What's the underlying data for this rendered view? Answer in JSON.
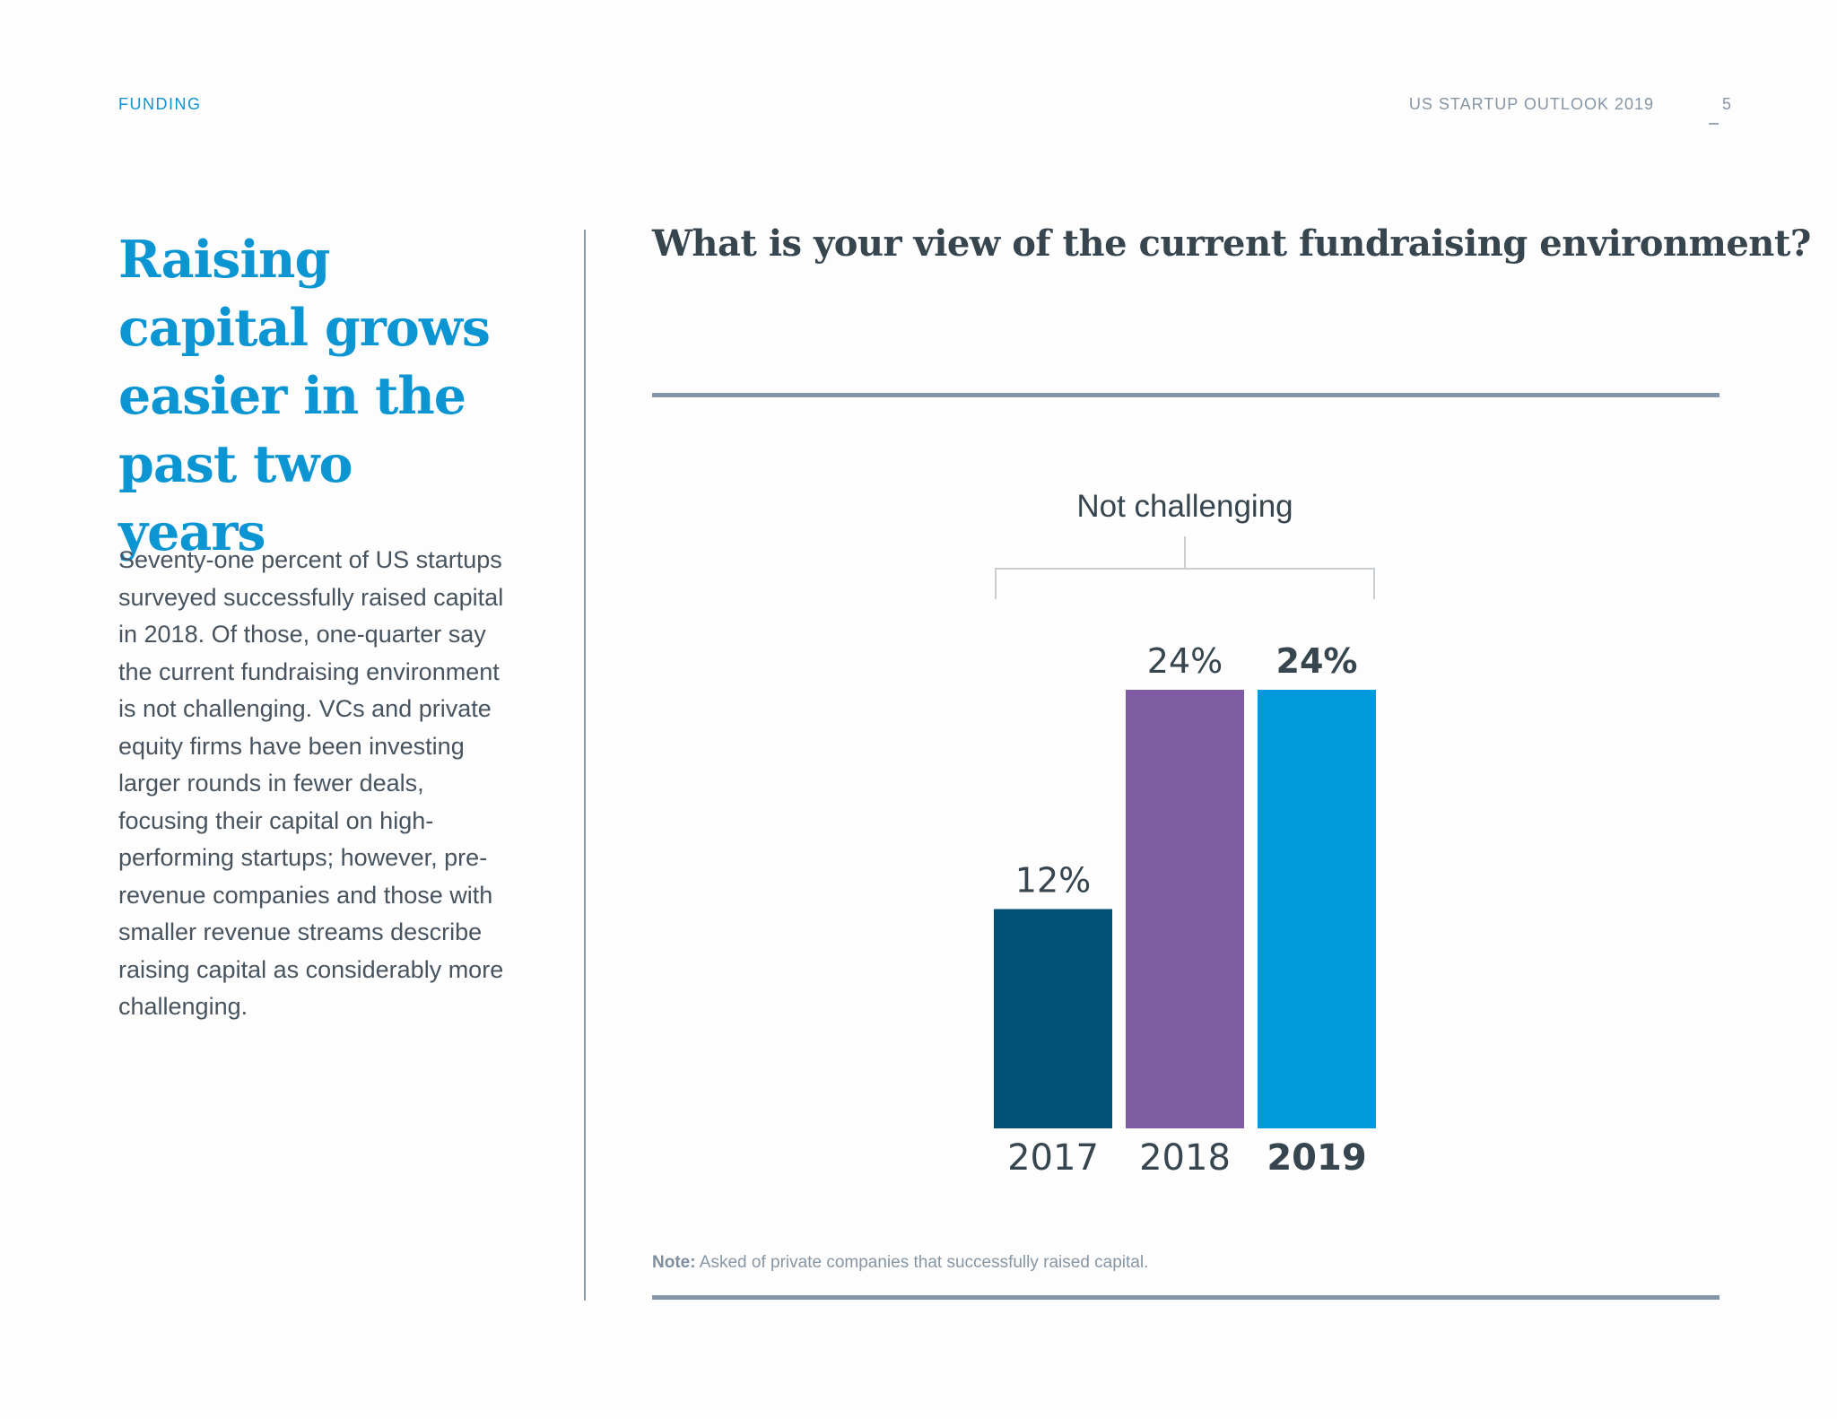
{
  "header": {
    "section": "FUNDING",
    "report": "US STARTUP OUTLOOK 2019",
    "page_number": "5"
  },
  "headline": "Raising capital grows easier in the past two years",
  "body": "Seventy-one percent of US startups surveyed successfully raised capital in 2018. Of those, one-quarter say the current fundraising environment is not challenging. VCs and private equity firms have been investing larger rounds in fewer deals, focusing their capital on high-performing startups; however, pre-revenue companies and those with smaller revenue streams describe raising capital as considerably more challenging.",
  "note": {
    "label": "Note:",
    "text": "Asked of private companies that successfully raised capital."
  },
  "chart_data": {
    "type": "bar",
    "title": "What is your view of the current fundraising environment?",
    "group_label": "Not challenging",
    "categories": [
      "2017",
      "2018",
      "2019"
    ],
    "values": [
      12,
      24,
      24
    ],
    "value_labels": [
      "12%",
      "24%",
      "24%"
    ],
    "colors": [
      "#005275",
      "#7f5ca1",
      "#0099dc"
    ],
    "highlight_index": 2,
    "ylim": [
      0,
      24
    ],
    "grid": false,
    "legend": "none"
  }
}
